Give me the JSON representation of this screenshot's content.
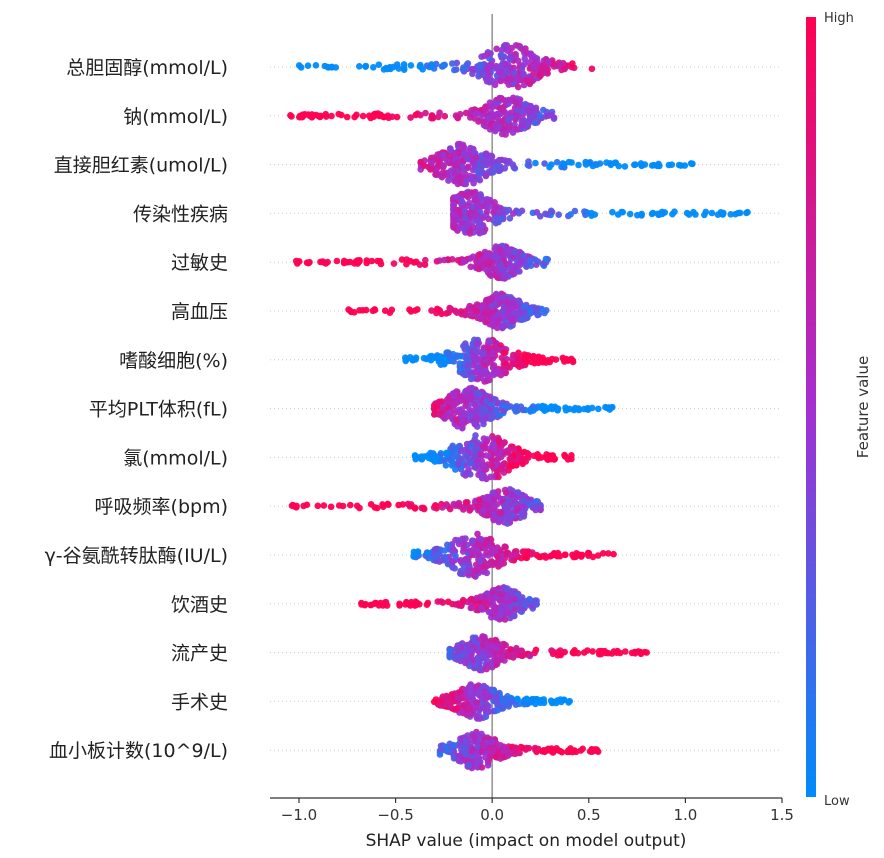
{
  "chart_data": {
    "type": "scatter",
    "subtype": "shap-beeswarm",
    "xlabel": "SHAP value (impact on model output)",
    "xlim": [
      -1.15,
      1.5
    ],
    "xticks": [
      -1.0,
      -0.5,
      0.0,
      0.5,
      1.0,
      1.5
    ],
    "xtick_labels": [
      "−1.0",
      "−0.5",
      "0.0",
      "0.5",
      "1.0",
      "1.5"
    ],
    "grid": false,
    "colorbar": {
      "title": "Feature value",
      "high_label": "High",
      "low_label": "Low",
      "low_color": "#008bfb",
      "high_color": "#ff0052",
      "mid_color": "#a52fd0"
    },
    "features": [
      {
        "name": "总胆固醇(mmol/L)",
        "min": -1.0,
        "max": 0.53,
        "low_side": "negative",
        "mode": 0.1,
        "width": 0.9,
        "peak": 0.95
      },
      {
        "name": "钠(mmol/L)",
        "min": -1.05,
        "max": 0.32,
        "low_side": "positive",
        "mode": 0.08,
        "width": 0.7,
        "peak": 0.75
      },
      {
        "name": "直接胆红素(umol/L)",
        "min": -0.37,
        "max": 1.04,
        "low_side": "positive",
        "mode": -0.15,
        "width": 0.8,
        "peak": 0.8
      },
      {
        "name": "传染性疾病",
        "min": -0.2,
        "max": 1.38,
        "low_side": "positive",
        "mode": -0.11,
        "width": 0.75,
        "peak": 0.85
      },
      {
        "name": "过敏史",
        "min": -1.02,
        "max": 0.29,
        "low_side": "positive",
        "mode": 0.05,
        "width": 0.55,
        "peak": 0.6
      },
      {
        "name": "高血压",
        "min": -0.76,
        "max": 0.28,
        "low_side": "positive",
        "mode": 0.05,
        "width": 0.55,
        "peak": 0.65
      },
      {
        "name": "嗜酸细胞(%)",
        "min": -0.45,
        "max": 0.42,
        "low_side": "negative",
        "mode": -0.05,
        "width": 0.85,
        "peak": 0.85
      },
      {
        "name": "平均PLT体积(fL)",
        "min": -0.3,
        "max": 0.63,
        "low_side": "positive",
        "mode": -0.12,
        "width": 0.7,
        "peak": 0.8
      },
      {
        "name": "氯(mmol/L)",
        "min": -0.4,
        "max": 0.43,
        "low_side": "negative",
        "mode": -0.05,
        "width": 0.95,
        "peak": 0.95
      },
      {
        "name": "呼吸频率(bpm)",
        "min": -1.05,
        "max": 0.25,
        "low_side": "positive",
        "mode": 0.07,
        "width": 0.55,
        "peak": 0.65
      },
      {
        "name": "γ-谷氨酰转肽酶(IU/L)",
        "min": -0.42,
        "max": 0.64,
        "low_side": "negative",
        "mode": -0.1,
        "width": 0.8,
        "peak": 0.85
      },
      {
        "name": "饮酒史",
        "min": -0.7,
        "max": 0.23,
        "low_side": "positive",
        "mode": 0.05,
        "width": 0.5,
        "peak": 0.6
      },
      {
        "name": "流产史",
        "min": -0.22,
        "max": 0.8,
        "low_side": "negative",
        "mode": -0.05,
        "width": 0.55,
        "peak": 0.65
      },
      {
        "name": "手术史",
        "min": -0.3,
        "max": 0.43,
        "low_side": "positive",
        "mode": -0.08,
        "width": 0.6,
        "peak": 0.65
      },
      {
        "name": "血小板计数(10^9/L)",
        "min": -0.27,
        "max": 0.55,
        "low_side": "negative",
        "mode": -0.08,
        "width": 0.6,
        "peak": 0.7
      }
    ]
  }
}
